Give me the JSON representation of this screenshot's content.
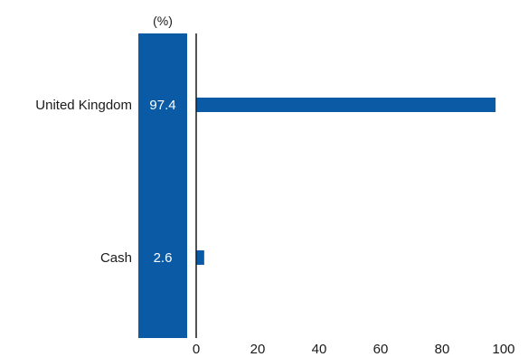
{
  "chart_data": {
    "type": "bar",
    "orientation": "horizontal",
    "unit_label": "(%)",
    "categories": [
      "United Kingdom",
      "Cash"
    ],
    "values": [
      97.4,
      2.6
    ],
    "value_labels": [
      "97.4",
      "2.6"
    ],
    "xlim": [
      0,
      100
    ],
    "xticks": [
      "0",
      "20",
      "40",
      "60",
      "80",
      "100"
    ],
    "title": "",
    "xlabel": "",
    "ylabel": "",
    "grid": false,
    "colors": {
      "bar": "#0a5aa5",
      "value_column": "#0a5aa5",
      "axis": "#1a1a1a"
    }
  }
}
